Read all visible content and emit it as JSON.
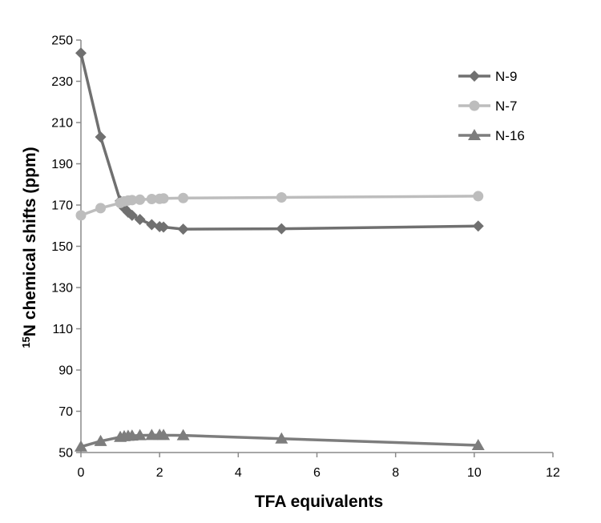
{
  "chart_data": {
    "type": "line",
    "xlabel": "TFA equivalents",
    "ylabel_sup": "15",
    "ylabel_main": "N chemical shifts (ppm)",
    "xlim": [
      0,
      12
    ],
    "ylim": [
      50,
      250
    ],
    "xticks": [
      0,
      2,
      4,
      6,
      8,
      10,
      12
    ],
    "yticks": [
      50,
      70,
      90,
      110,
      130,
      150,
      170,
      190,
      210,
      230,
      250
    ],
    "grid": false,
    "legend_position": "top-right",
    "series": [
      {
        "name": "N-9",
        "color": "#707070",
        "marker": "diamond",
        "x": [
          0,
          0.5,
          1.0,
          1.1,
          1.2,
          1.3,
          1.5,
          1.8,
          2.0,
          2.1,
          2.6,
          5.1,
          10.1
        ],
        "y": [
          243.7,
          203.0,
          172.0,
          168.5,
          166.5,
          165.0,
          163.0,
          160.5,
          159.5,
          159.3,
          158.3,
          158.5,
          159.8
        ]
      },
      {
        "name": "N-7",
        "color": "#bdbdbd",
        "marker": "circle",
        "x": [
          0,
          0.5,
          1.0,
          1.1,
          1.2,
          1.3,
          1.5,
          1.8,
          2.0,
          2.1,
          2.6,
          5.1,
          10.1
        ],
        "y": [
          165.0,
          168.5,
          171.0,
          171.8,
          172.2,
          172.4,
          172.6,
          172.9,
          173.0,
          173.2,
          173.4,
          173.7,
          174.3
        ]
      },
      {
        "name": "N-16",
        "color": "#7d7d7d",
        "marker": "triangle",
        "x": [
          0,
          0.5,
          1.0,
          1.1,
          1.2,
          1.3,
          1.5,
          1.8,
          2.0,
          2.1,
          2.6,
          5.1,
          10.1
        ],
        "y": [
          52.8,
          55.5,
          57.5,
          57.8,
          58.0,
          58.1,
          58.3,
          58.4,
          58.5,
          58.4,
          58.3,
          56.7,
          53.5
        ]
      }
    ]
  }
}
